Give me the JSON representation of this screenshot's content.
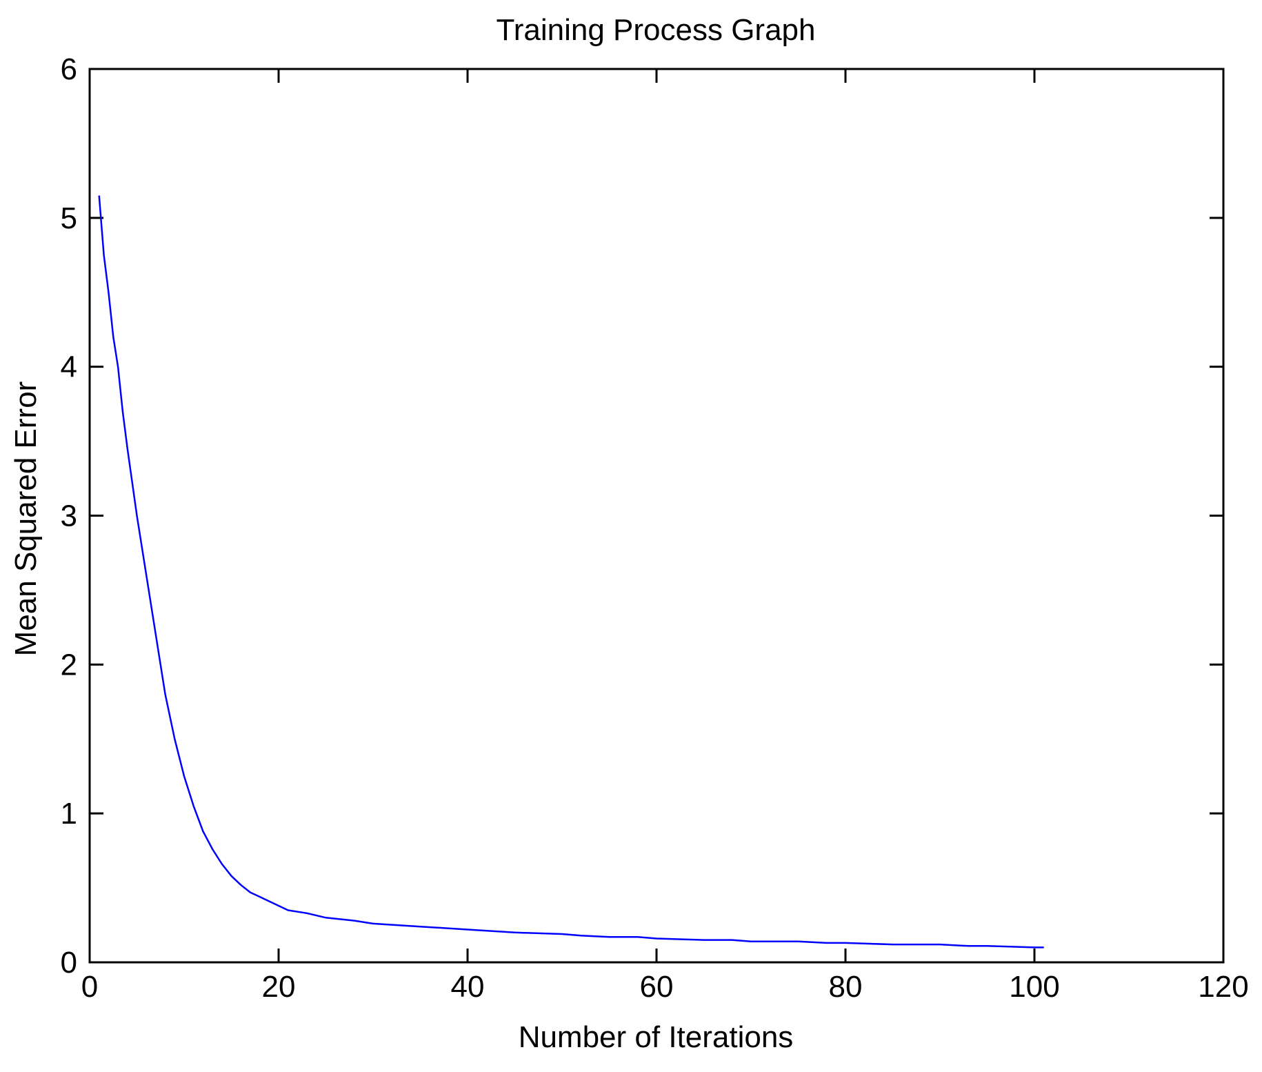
{
  "chart_data": {
    "type": "line",
    "title": "Training Process Graph",
    "xlabel": "Number of Iterations",
    "ylabel": "Mean Squared Error",
    "xlim": [
      0,
      120
    ],
    "ylim": [
      0,
      6
    ],
    "xticks": [
      0,
      20,
      40,
      60,
      80,
      100,
      120
    ],
    "yticks": [
      0,
      1,
      2,
      3,
      4,
      5,
      6
    ],
    "grid": false,
    "series": [
      {
        "color": "#0000ff",
        "x": [
          1,
          1.5,
          2,
          2.5,
          3,
          3.5,
          4,
          5,
          6,
          7,
          8,
          9,
          10,
          11,
          12,
          13,
          14,
          15,
          16,
          17,
          18,
          19,
          20,
          21,
          23,
          25,
          28,
          30,
          35,
          40,
          45,
          50,
          52,
          55,
          58,
          60,
          65,
          68,
          70,
          75,
          78,
          80,
          85,
          90,
          93,
          95,
          100,
          101
        ],
        "y": [
          5.15,
          4.75,
          4.5,
          4.2,
          4.0,
          3.7,
          3.45,
          3.0,
          2.6,
          2.2,
          1.8,
          1.5,
          1.25,
          1.05,
          0.88,
          0.76,
          0.66,
          0.58,
          0.52,
          0.47,
          0.44,
          0.41,
          0.38,
          0.35,
          0.33,
          0.3,
          0.28,
          0.26,
          0.24,
          0.22,
          0.2,
          0.19,
          0.18,
          0.17,
          0.17,
          0.16,
          0.15,
          0.15,
          0.14,
          0.14,
          0.13,
          0.13,
          0.12,
          0.12,
          0.11,
          0.11,
          0.1,
          0.1
        ]
      }
    ]
  }
}
